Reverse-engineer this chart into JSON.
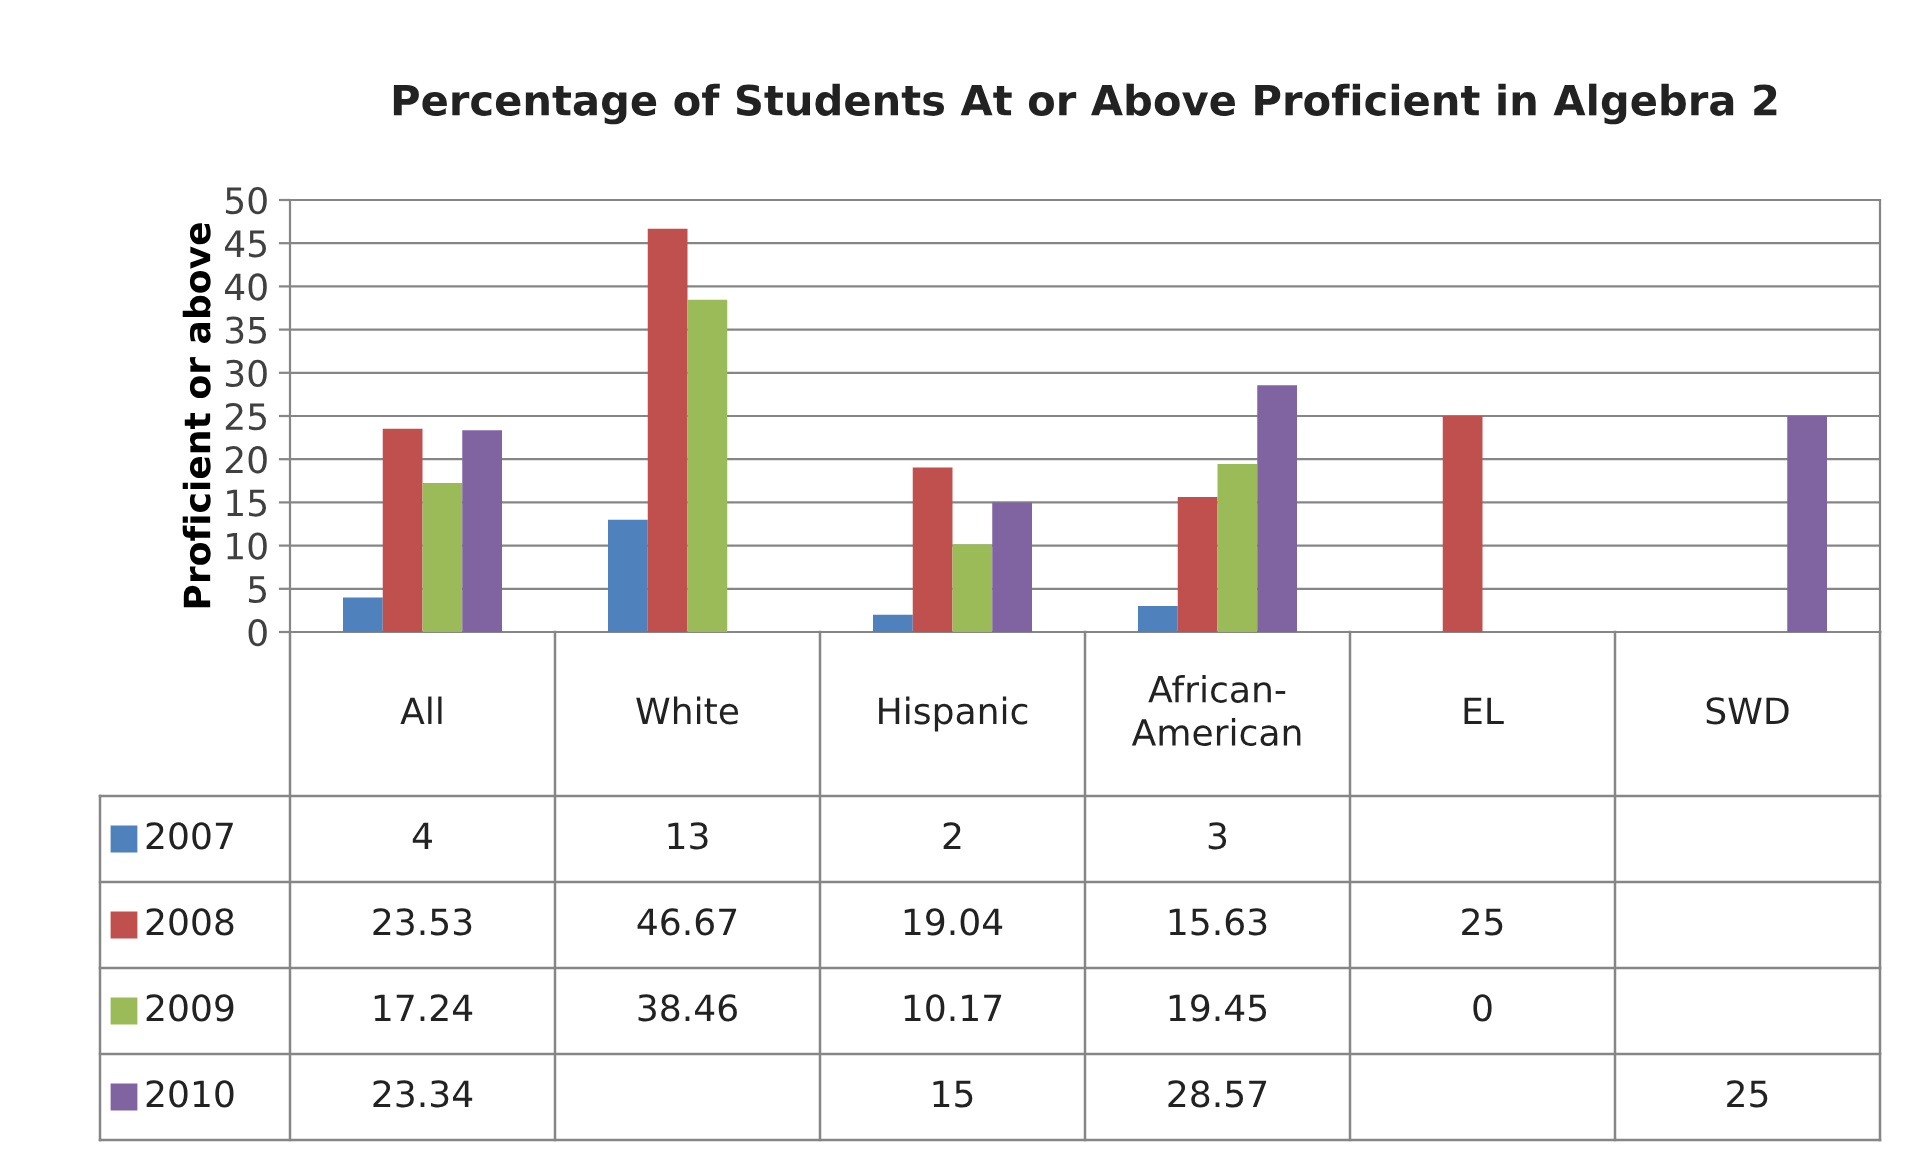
{
  "chart_data": {
    "type": "bar",
    "title": "Percentage of Students At or Above Proficient in Algebra 2",
    "ylabel": "Proficient or above",
    "categories": [
      "All",
      "White",
      "Hispanic",
      "African-American",
      "EL",
      "SWD"
    ],
    "series": [
      {
        "name": "2007",
        "color": "#4f81bd",
        "values": [
          4,
          13,
          2,
          3,
          null,
          null
        ]
      },
      {
        "name": "2008",
        "color": "#c0504d",
        "values": [
          23.53,
          46.67,
          19.04,
          15.63,
          25,
          null
        ]
      },
      {
        "name": "2009",
        "color": "#9bbb59",
        "values": [
          17.24,
          38.46,
          10.17,
          19.45,
          0,
          null
        ]
      },
      {
        "name": "2010",
        "color": "#8064a2",
        "values": [
          23.34,
          null,
          15,
          28.57,
          null,
          25
        ]
      }
    ],
    "ylim": [
      0,
      50
    ],
    "yticks": [
      0,
      5,
      10,
      15,
      20,
      25,
      30,
      35,
      40,
      45,
      50
    ],
    "grid": "y",
    "legend": "bottom",
    "data_labels": true
  }
}
